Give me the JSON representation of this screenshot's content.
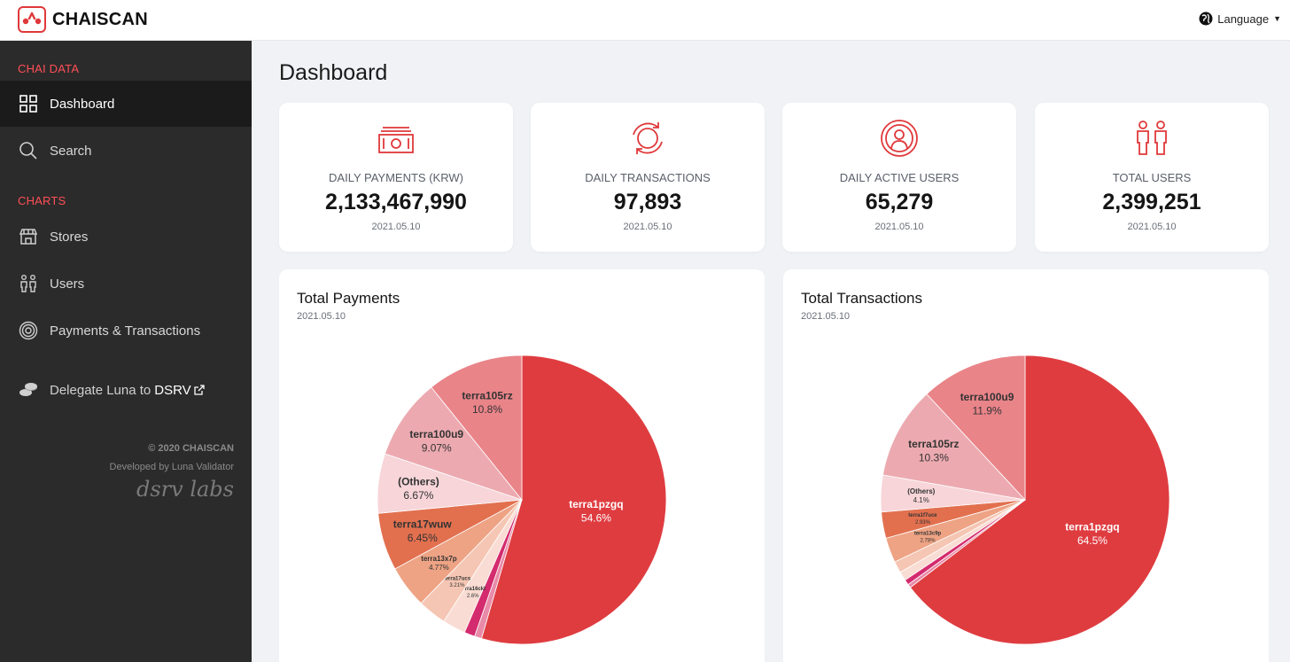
{
  "app": {
    "brand": "CHAISCAN",
    "language_label": "Language"
  },
  "sidebar": {
    "section_data": "CHAI DATA",
    "section_charts": "CHARTS",
    "items": [
      {
        "label": "Dashboard",
        "icon": "grid-icon"
      },
      {
        "label": "Search",
        "icon": "search-icon"
      },
      {
        "label": "Stores",
        "icon": "store-icon"
      },
      {
        "label": "Users",
        "icon": "users-icon"
      },
      {
        "label": "Payments & Transactions",
        "icon": "coin-icon"
      }
    ],
    "delegate_text": "Delegate Luna to",
    "delegate_link": "DSRV",
    "copyright": "© 2020 CHAISCAN",
    "developed_by": "Developed by Luna Validator",
    "company_mark": "dsrv labs"
  },
  "main": {
    "title": "Dashboard",
    "stats": [
      {
        "label": "DAILY PAYMENTS (KRW)",
        "value": "2,133,467,990",
        "date": "2021.05.10",
        "icon": "cash-icon"
      },
      {
        "label": "DAILY TRANSACTIONS",
        "value": "97,893",
        "date": "2021.05.10",
        "icon": "cycle-icon"
      },
      {
        "label": "DAILY ACTIVE USERS",
        "value": "65,279",
        "date": "2021.05.10",
        "icon": "active-user-icon"
      },
      {
        "label": "TOTAL USERS",
        "value": "2,399,251",
        "date": "2021.05.10",
        "icon": "people-icon"
      }
    ]
  },
  "colors": {
    "accent": "#e0383a",
    "sidebar_bg": "#2b2b2b"
  },
  "chart_data": [
    {
      "type": "pie",
      "title": "Total Payments",
      "subtitle": "2021.05.10",
      "slices": [
        {
          "label": "terra1pzgq",
          "value": 54.6,
          "pct_text": "54.6%",
          "color": "#df3c40"
        },
        {
          "label": "",
          "value": 0.8,
          "pct_text": "",
          "color": "#e88aa8"
        },
        {
          "label": "",
          "value": 1.2,
          "pct_text": "",
          "color": "#d42b6e"
        },
        {
          "label": "terra16ckt",
          "value": 2.6,
          "pct_text": "2.6%",
          "color": "#f9dcd3"
        },
        {
          "label": "terra17ucs",
          "value": 3.21,
          "pct_text": "3.21%",
          "color": "#f5c6b3"
        },
        {
          "label": "terra13x7p",
          "value": 4.77,
          "pct_text": "4.77%",
          "color": "#eda384"
        },
        {
          "label": "terra17wuw",
          "value": 6.45,
          "pct_text": "6.45%",
          "color": "#e2704f"
        },
        {
          "label": "(Others)",
          "value": 6.67,
          "pct_text": "6.67%",
          "color": "#f7d5d9"
        },
        {
          "label": "terra100u9",
          "value": 9.07,
          "pct_text": "9.07%",
          "color": "#ecaab0"
        },
        {
          "label": "terra105rz",
          "value": 10.8,
          "pct_text": "10.8%",
          "color": "#e98489"
        }
      ]
    },
    {
      "type": "pie",
      "title": "Total Transactions",
      "subtitle": "2021.05.10",
      "slices": [
        {
          "label": "terra1pzgq",
          "value": 64.5,
          "pct_text": "64.5%",
          "color": "#df3c40"
        },
        {
          "label": "",
          "value": 0.4,
          "pct_text": "",
          "color": "#e88aa8"
        },
        {
          "label": "",
          "value": 0.6,
          "pct_text": "",
          "color": "#d42b6e"
        },
        {
          "label": "",
          "value": 1.0,
          "pct_text": "",
          "color": "#f9dcd3"
        },
        {
          "label": "",
          "value": 1.3,
          "pct_text": "",
          "color": "#f5c6b3"
        },
        {
          "label": "terra13c9p",
          "value": 2.78,
          "pct_text": "2.78%",
          "color": "#eda384"
        },
        {
          "label": "terra1f7uce",
          "value": 2.93,
          "pct_text": "2.93%",
          "color": "#e2704f"
        },
        {
          "label": "(Others)",
          "value": 4.1,
          "pct_text": "4.1%",
          "color": "#f7d5d9"
        },
        {
          "label": "terra105rz",
          "value": 10.3,
          "pct_text": "10.3%",
          "color": "#ecaab0"
        },
        {
          "label": "terra100u9",
          "value": 11.9,
          "pct_text": "11.9%",
          "color": "#e98489"
        }
      ]
    }
  ]
}
